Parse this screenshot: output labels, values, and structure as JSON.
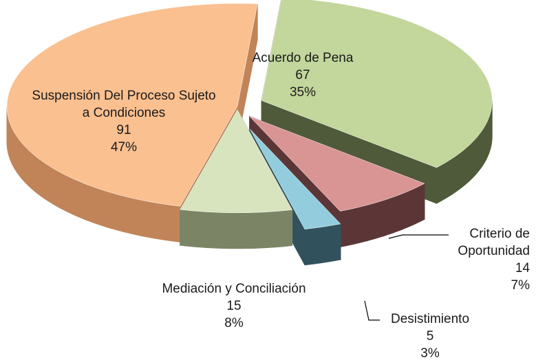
{
  "chart_data": {
    "type": "pie3d",
    "categories": [
      "Acuerdo de Pena",
      "Criterio de Oportunidad",
      "Desistimiento",
      "Mediación y Conciliación",
      "Suspensión Del Proceso Sujeto a Condiciones"
    ],
    "values": [
      67,
      14,
      5,
      15,
      91
    ],
    "percent_labels": [
      "35%",
      "7%",
      "3%",
      "8%",
      "47%"
    ],
    "colors": [
      "#c3d69b",
      "#d99594",
      "#93cddd",
      "#d7e4bd",
      "#fac090"
    ],
    "side_colors": [
      "#4f5a3a",
      "#5c3636",
      "#31525c",
      "#7b8566",
      "#c08458"
    ]
  }
}
